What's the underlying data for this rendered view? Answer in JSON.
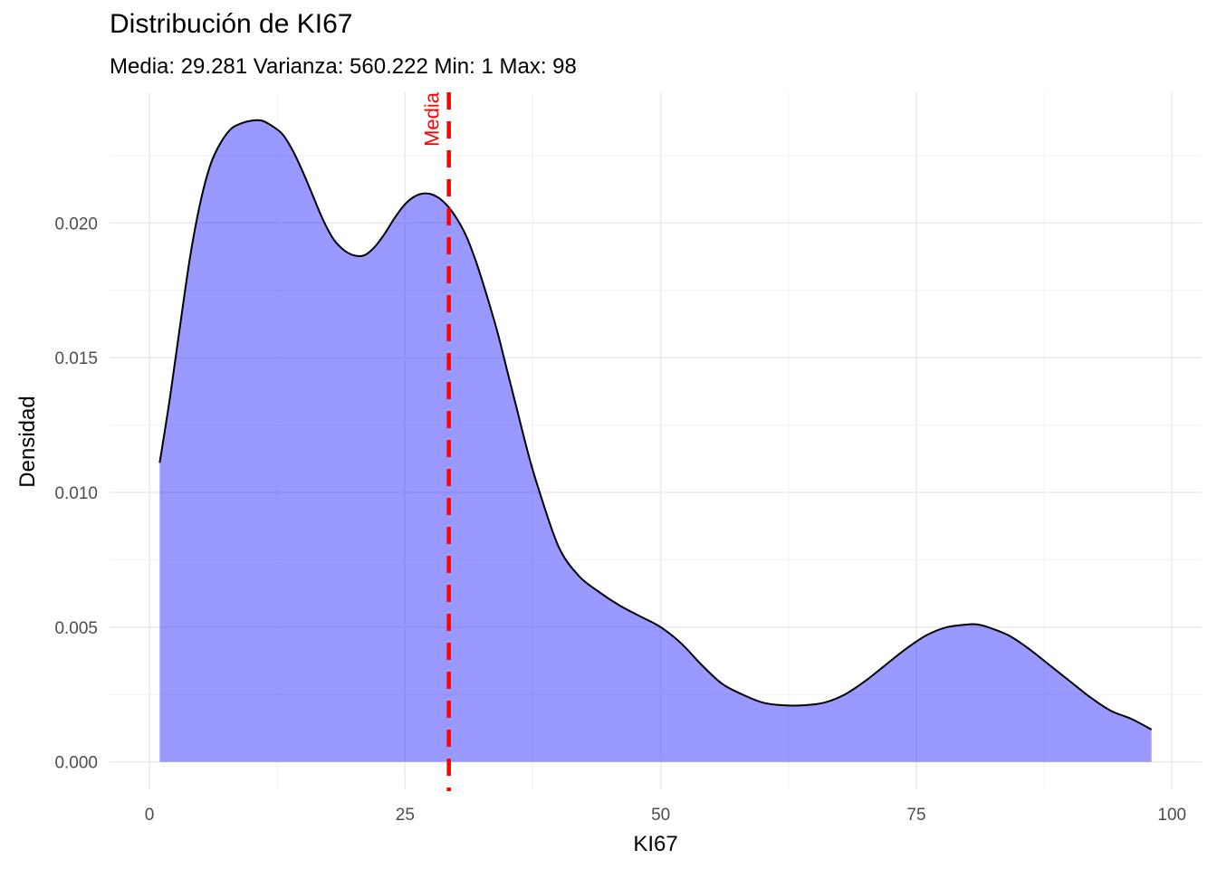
{
  "chart_data": {
    "type": "area",
    "title": "Distribución de KI67",
    "subtitle": "Media: 29.281 Varianza: 560.222 Min: 1 Max: 98",
    "xlabel": "KI67",
    "ylabel": "Densidad",
    "xlim": [
      -3.9,
      102.9
    ],
    "ylim": [
      -0.00102,
      0.02485
    ],
    "x_ticks": [
      0,
      25,
      50,
      75,
      100
    ],
    "x_tick_labels": [
      "0",
      "25",
      "50",
      "75",
      "100"
    ],
    "y_ticks": [
      0,
      0.005,
      0.01,
      0.015,
      0.02
    ],
    "y_tick_labels": [
      "0.000",
      "0.005",
      "0.010",
      "0.015",
      "0.020"
    ],
    "grid": true,
    "colors": {
      "fill": "#0000ff",
      "fill_opacity": 0.4,
      "outline": "#000000",
      "mean_line": "#ff0000"
    },
    "series": [
      {
        "x": [
          1,
          2,
          3,
          4,
          5,
          6,
          7,
          8,
          9,
          10,
          11,
          12,
          13,
          14,
          15,
          16,
          17,
          18,
          19,
          20,
          21,
          22,
          23,
          24,
          25,
          26,
          27,
          28,
          29,
          30,
          31,
          32,
          33,
          34,
          35,
          36,
          37,
          38,
          40,
          42,
          44,
          46,
          48,
          50,
          52,
          54,
          56,
          58,
          60,
          62,
          64,
          66,
          68,
          70,
          72,
          74,
          76,
          78,
          80,
          81,
          82,
          84,
          86,
          88,
          90,
          92,
          94,
          96,
          98
        ],
        "values": [
          0.0111,
          0.0135,
          0.0162,
          0.0188,
          0.0208,
          0.0222,
          0.023,
          0.0235,
          0.0237,
          0.0238,
          0.0238,
          0.0236,
          0.0233,
          0.0227,
          0.0219,
          0.021,
          0.0201,
          0.0194,
          0.019,
          0.0188,
          0.0188,
          0.0191,
          0.0196,
          0.0202,
          0.0207,
          0.021,
          0.0211,
          0.021,
          0.0207,
          0.0202,
          0.0195,
          0.0185,
          0.0173,
          0.016,
          0.0145,
          0.013,
          0.0115,
          0.0102,
          0.008,
          0.0069,
          0.0063,
          0.0058,
          0.0054,
          0.005,
          0.0044,
          0.0036,
          0.0029,
          0.0025,
          0.0022,
          0.0021,
          0.0021,
          0.0022,
          0.0025,
          0.003,
          0.0036,
          0.0042,
          0.0047,
          0.005,
          0.0051,
          0.0051,
          0.005,
          0.0047,
          0.0042,
          0.0036,
          0.003,
          0.0024,
          0.0019,
          0.0016,
          0.0012
        ]
      }
    ],
    "annotations": [
      {
        "type": "vline",
        "x": 29.281,
        "label": "Media",
        "style": "dashed",
        "color": "#ff0000"
      }
    ]
  }
}
